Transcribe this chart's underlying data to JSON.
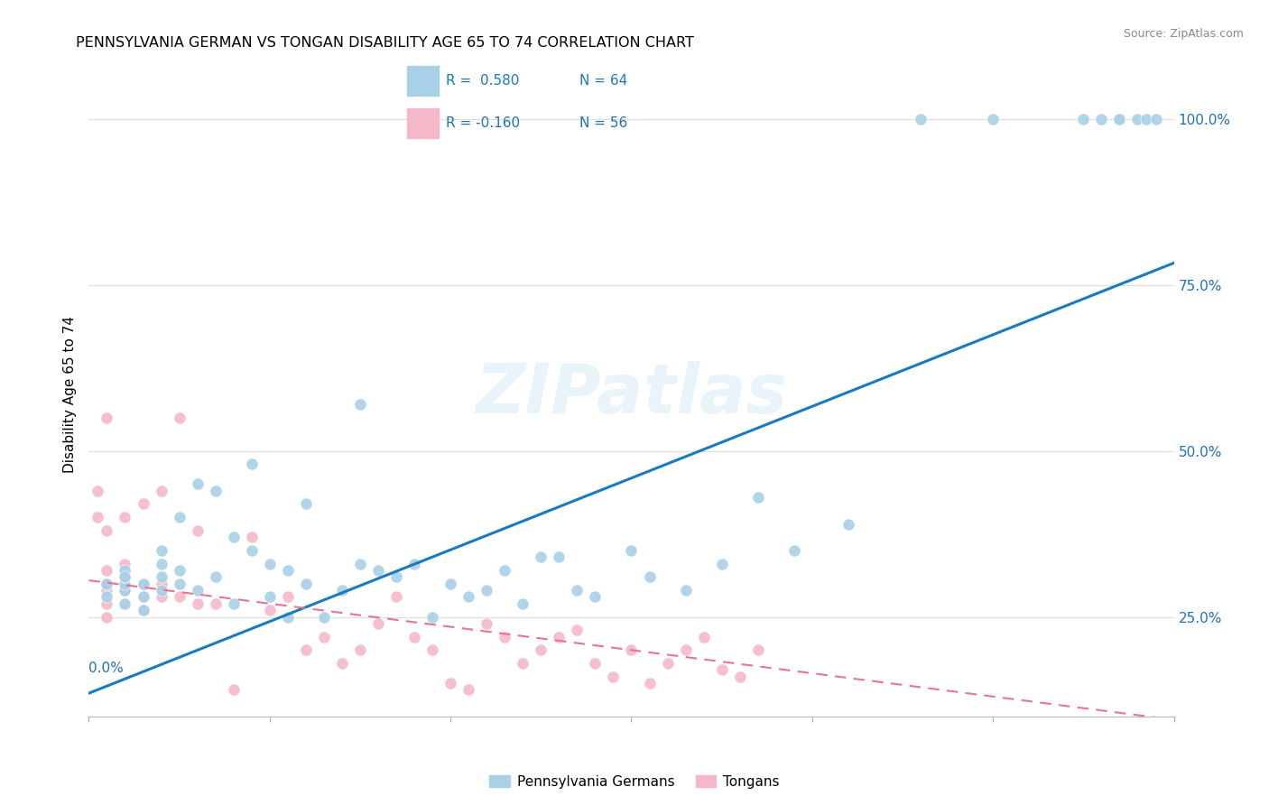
{
  "title": "PENNSYLVANIA GERMAN VS TONGAN DISABILITY AGE 65 TO 74 CORRELATION CHART",
  "source": "Source: ZipAtlas.com",
  "ylabel": "Disability Age 65 to 74",
  "yticks": [
    0.25,
    0.5,
    0.75,
    1.0
  ],
  "ytick_labels": [
    "25.0%",
    "50.0%",
    "75.0%",
    "100.0%"
  ],
  "xlim": [
    0.0,
    0.6
  ],
  "ylim": [
    0.1,
    1.07
  ],
  "legend_r1": "R =  0.580",
  "legend_n1": "N = 64",
  "legend_r2": "R = -0.160",
  "legend_n2": "N = 56",
  "legend_label1": "Pennsylvania Germans",
  "legend_label2": "Tongans",
  "blue_color": "#a8d0e6",
  "blue_line_color": "#1a7abf",
  "pink_color": "#f4b8c8",
  "pink_line_color": "#e8758a",
  "label_color": "#2171b5",
  "slope_blue": 1.08,
  "intercept_blue": 0.135,
  "slope_pink": -0.35,
  "intercept_pink": 0.305,
  "watermark": "ZIPatlas",
  "blue_dots_x": [
    0.01,
    0.01,
    0.02,
    0.02,
    0.02,
    0.02,
    0.02,
    0.03,
    0.03,
    0.03,
    0.04,
    0.04,
    0.04,
    0.04,
    0.05,
    0.05,
    0.05,
    0.06,
    0.06,
    0.07,
    0.07,
    0.08,
    0.08,
    0.09,
    0.09,
    0.1,
    0.1,
    0.11,
    0.11,
    0.12,
    0.12,
    0.13,
    0.14,
    0.15,
    0.15,
    0.16,
    0.17,
    0.18,
    0.19,
    0.2,
    0.21,
    0.22,
    0.23,
    0.24,
    0.25,
    0.26,
    0.27,
    0.28,
    0.3,
    0.31,
    0.33,
    0.35,
    0.37,
    0.39,
    0.42,
    0.46,
    0.5,
    0.55,
    0.56,
    0.57,
    0.57,
    0.58,
    0.585,
    0.59
  ],
  "blue_dots_y": [
    0.28,
    0.3,
    0.27,
    0.29,
    0.3,
    0.32,
    0.31,
    0.26,
    0.28,
    0.3,
    0.29,
    0.31,
    0.33,
    0.35,
    0.3,
    0.32,
    0.4,
    0.29,
    0.45,
    0.31,
    0.44,
    0.27,
    0.37,
    0.35,
    0.48,
    0.28,
    0.33,
    0.25,
    0.32,
    0.3,
    0.42,
    0.25,
    0.29,
    0.33,
    0.57,
    0.32,
    0.31,
    0.33,
    0.25,
    0.3,
    0.28,
    0.29,
    0.32,
    0.27,
    0.34,
    0.34,
    0.29,
    0.28,
    0.35,
    0.31,
    0.29,
    0.33,
    0.43,
    0.35,
    0.39,
    1.0,
    1.0,
    1.0,
    1.0,
    1.0,
    1.0,
    1.0,
    1.0,
    1.0
  ],
  "pink_dots_x": [
    0.005,
    0.005,
    0.01,
    0.01,
    0.01,
    0.01,
    0.01,
    0.01,
    0.01,
    0.02,
    0.02,
    0.02,
    0.02,
    0.02,
    0.03,
    0.03,
    0.03,
    0.03,
    0.04,
    0.04,
    0.04,
    0.05,
    0.05,
    0.06,
    0.06,
    0.07,
    0.08,
    0.09,
    0.1,
    0.11,
    0.12,
    0.13,
    0.14,
    0.15,
    0.16,
    0.17,
    0.18,
    0.19,
    0.2,
    0.21,
    0.22,
    0.23,
    0.24,
    0.25,
    0.26,
    0.27,
    0.28,
    0.29,
    0.3,
    0.31,
    0.32,
    0.33,
    0.34,
    0.35,
    0.36,
    0.37
  ],
  "pink_dots_y": [
    0.44,
    0.4,
    0.25,
    0.27,
    0.29,
    0.3,
    0.32,
    0.38,
    0.55,
    0.27,
    0.29,
    0.31,
    0.33,
    0.4,
    0.26,
    0.28,
    0.3,
    0.42,
    0.28,
    0.3,
    0.44,
    0.28,
    0.55,
    0.27,
    0.38,
    0.27,
    0.14,
    0.37,
    0.26,
    0.28,
    0.2,
    0.22,
    0.18,
    0.2,
    0.24,
    0.28,
    0.22,
    0.2,
    0.15,
    0.14,
    0.24,
    0.22,
    0.18,
    0.2,
    0.22,
    0.23,
    0.18,
    0.16,
    0.2,
    0.15,
    0.18,
    0.2,
    0.22,
    0.17,
    0.16,
    0.2
  ]
}
